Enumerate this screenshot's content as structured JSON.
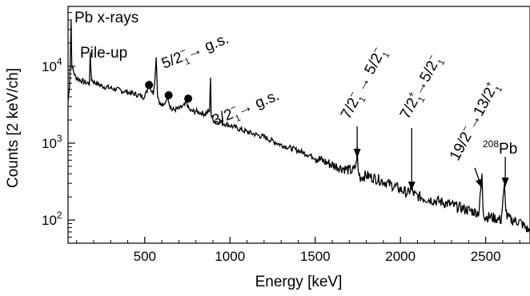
{
  "chart_data": {
    "type": "line",
    "xlabel": "Energy [keV]",
    "ylabel": "Counts [2 keV/ch]",
    "xlim": [
      50,
      2760
    ],
    "ylim": [
      50,
      60000
    ],
    "y_scale": "log",
    "grid": false,
    "x_ticks": [
      500,
      1000,
      1500,
      2000,
      2500
    ],
    "x_tick_labels": [
      "500",
      "1000",
      "1500",
      "2000",
      "2500"
    ],
    "y_ticks": [
      100,
      1000,
      10000
    ],
    "y_tick_labels": [
      {
        "base": "10",
        "exp": "2"
      },
      {
        "base": "10",
        "exp": "3"
      },
      {
        "base": "10",
        "exp": "4"
      }
    ],
    "series": [
      {
        "x": [
          50,
          60,
          68,
          72,
          80,
          90,
          110,
          150,
          175,
          180,
          183,
          188,
          200,
          250,
          300,
          350,
          400,
          450,
          490,
          510,
          528,
          535,
          550,
          562,
          567,
          575,
          590,
          610,
          635,
          645,
          660,
          700,
          735,
          745,
          755,
          770,
          800,
          850,
          880,
          886,
          890,
          900,
          1000,
          1100,
          1200,
          1300,
          1400,
          1500,
          1600,
          1680,
          1720,
          1740,
          1746,
          1752,
          1765,
          1800,
          1900,
          2000,
          2050,
          2065,
          2070,
          2085,
          2150,
          2250,
          2350,
          2420,
          2460,
          2478,
          2485,
          2495,
          2530,
          2590,
          2610,
          2615,
          2625,
          2650,
          2700,
          2760
        ],
        "y": [
          3500,
          6000,
          40000,
          10000,
          9000,
          7500,
          6800,
          6200,
          6000,
          14000,
          10000,
          6800,
          6300,
          5500,
          5200,
          4900,
          4600,
          4300,
          4000,
          4500,
          6500,
          5000,
          4500,
          8000,
          14000,
          4200,
          3200,
          3000,
          4200,
          3200,
          2700,
          2800,
          3100,
          3500,
          2900,
          2600,
          2600,
          2400,
          2600,
          7500,
          2300,
          2000,
          1700,
          1400,
          1200,
          950,
          800,
          650,
          520,
          460,
          430,
          520,
          820,
          430,
          360,
          380,
          320,
          250,
          220,
          300,
          230,
          210,
          190,
          170,
          145,
          130,
          125,
          370,
          140,
          110,
          110,
          100,
          270,
          170,
          110,
          100,
          95,
          70
        ]
      }
    ],
    "markers": [
      {
        "x": 525,
        "y": 5700
      },
      {
        "x": 640,
        "y": 4200
      },
      {
        "x": 755,
        "y": 3800
      }
    ],
    "annotations": {
      "pbx": {
        "text": "Pb x-rays"
      },
      "pileup": {
        "text": "Pile-up"
      },
      "a1": {
        "p1": "5/2",
        "sup1": "−",
        "sub1": "1",
        "arrow": "→",
        "p2": " g.s."
      },
      "a2": {
        "p1": "3/2",
        "sup1": "−",
        "sub1": "1",
        "arrow": "→",
        "p2": " g.s."
      },
      "a3": {
        "p1": "7/2",
        "sup1": "−",
        "sub1": "1",
        "arrow": " → ",
        "p2": "5/2",
        "sup2": "−",
        "sub2": "1"
      },
      "a4": {
        "p1": "7/2",
        "sup1": "+",
        "sub1": "1",
        "arrow": "→",
        "p2": "5/2",
        "sup2": "−",
        "sub2": "1"
      },
      "a5": {
        "p1": "19/2",
        "sup1": "−",
        "arrow": "→",
        "p2": "13/2",
        "sup2": "+",
        "sub2": "1"
      },
      "a6": {
        "pre": "208",
        "main": "Pb"
      }
    }
  }
}
